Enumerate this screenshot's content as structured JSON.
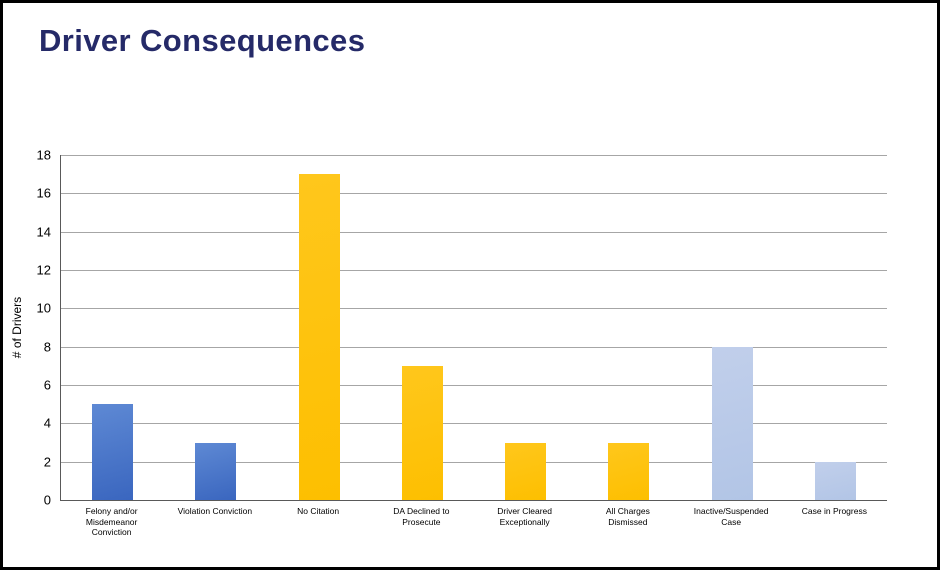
{
  "chart_data": {
    "type": "bar",
    "title": "Driver Consequences",
    "xlabel": "",
    "ylabel": "# of Drivers",
    "ylim": [
      0,
      18
    ],
    "ytick_step": 2,
    "grid": true,
    "legend": false,
    "categories": [
      "Felony and/or\nMisdemeanor\nConviction",
      "Violation Conviction",
      "No Citation",
      "DA Declined to\nProsecute",
      "Driver Cleared\nExceptionally",
      "All Charges\nDismissed",
      "Inactive/Suspended\nCase",
      "Case in Progress"
    ],
    "values": [
      5,
      3,
      17,
      7,
      3,
      3,
      8,
      2
    ],
    "bar_fill": [
      "blue",
      "blue",
      "gold",
      "gold",
      "gold",
      "gold",
      "lightblue",
      "lightblue"
    ],
    "palette": {
      "blue": {
        "from": "#5e89d4",
        "to": "#3a66bf"
      },
      "gold": {
        "from": "#ffc71c",
        "to": "#fdbf00"
      },
      "lightblue": {
        "from": "#c1cfeb",
        "to": "#b2c5e6"
      }
    }
  },
  "colors": {
    "title_color": "#252a68",
    "text_color": "#000000",
    "axis_color": "#595959",
    "gridline_color": "#a6a6a6",
    "frame_border": "#000000",
    "background": "#ffffff"
  }
}
